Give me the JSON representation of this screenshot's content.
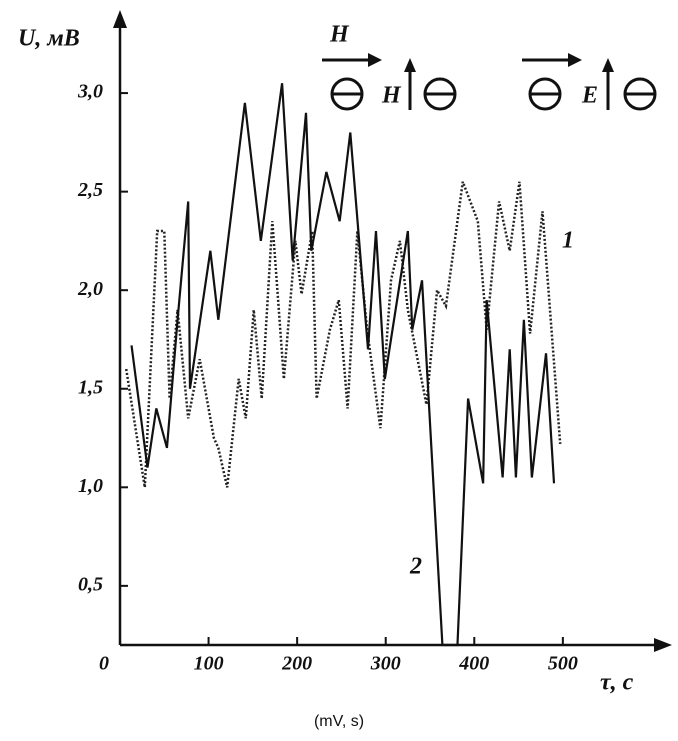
{
  "chart_data": {
    "type": "line",
    "y_label": "U, мВ",
    "x_label": "τ, с",
    "caption": "(mV, s)",
    "xlim": [
      0,
      560
    ],
    "ylim": [
      0.2,
      3.32
    ],
    "xticks": [
      0,
      100,
      200,
      300,
      400,
      500
    ],
    "yticks": [
      {
        "value": 0.5,
        "label": "0,5"
      },
      {
        "value": 1,
        "label": "1,0"
      },
      {
        "value": 1.5,
        "label": "1,5"
      },
      {
        "value": 2,
        "label": "2,0"
      },
      {
        "value": 2.5,
        "label": "2,5"
      },
      {
        "value": 3,
        "label": "3,0"
      }
    ],
    "annotations": [
      "1",
      "2",
      "H",
      "H",
      "E"
    ],
    "series": [
      {
        "name": "1",
        "color": "#222222",
        "style": "dotted",
        "x": [
          7,
          28,
          42,
          50,
          56,
          65,
          77,
          90,
          106,
          111,
          121,
          134,
          142,
          151,
          160,
          172,
          185,
          198,
          205,
          217,
          222,
          237,
          247,
          257,
          268,
          279,
          294,
          306,
          316,
          325,
          346,
          358,
          368,
          387,
          404,
          414,
          428,
          440,
          451,
          463,
          477,
          497
        ],
        "values": [
          1.6,
          1.0,
          2.3,
          2.3,
          1.45,
          1.9,
          1.35,
          1.65,
          1.25,
          1.2,
          1.0,
          1.55,
          1.35,
          1.9,
          1.45,
          2.35,
          1.55,
          2.25,
          1.98,
          2.3,
          1.45,
          1.8,
          1.95,
          1.4,
          2.3,
          1.8,
          1.3,
          2.05,
          2.25,
          1.9,
          1.42,
          2.0,
          1.92,
          2.55,
          2.35,
          1.8,
          2.45,
          2.2,
          2.55,
          1.78,
          2.4,
          1.22
        ]
      },
      {
        "name": "2",
        "color": "#111111",
        "style": "solid",
        "x": [
          13,
          31,
          41,
          53,
          65,
          77,
          79,
          102,
          111,
          141,
          159,
          183,
          195,
          210,
          216,
          233,
          248,
          260,
          280,
          289,
          299,
          325,
          330,
          341,
          364,
          381,
          393,
          410,
          414,
          432,
          440,
          447,
          456,
          465,
          481,
          490
        ],
        "values": [
          1.72,
          1.1,
          1.4,
          1.2,
          1.85,
          2.45,
          1.5,
          2.2,
          1.85,
          2.95,
          2.25,
          3.05,
          2.15,
          2.9,
          2.2,
          2.6,
          2.35,
          2.8,
          1.7,
          2.3,
          1.55,
          2.3,
          1.8,
          2.05,
          0.2,
          0.2,
          1.45,
          1.02,
          1.95,
          1.05,
          1.7,
          1.05,
          1.85,
          1.05,
          1.68,
          1.02
        ]
      }
    ]
  }
}
